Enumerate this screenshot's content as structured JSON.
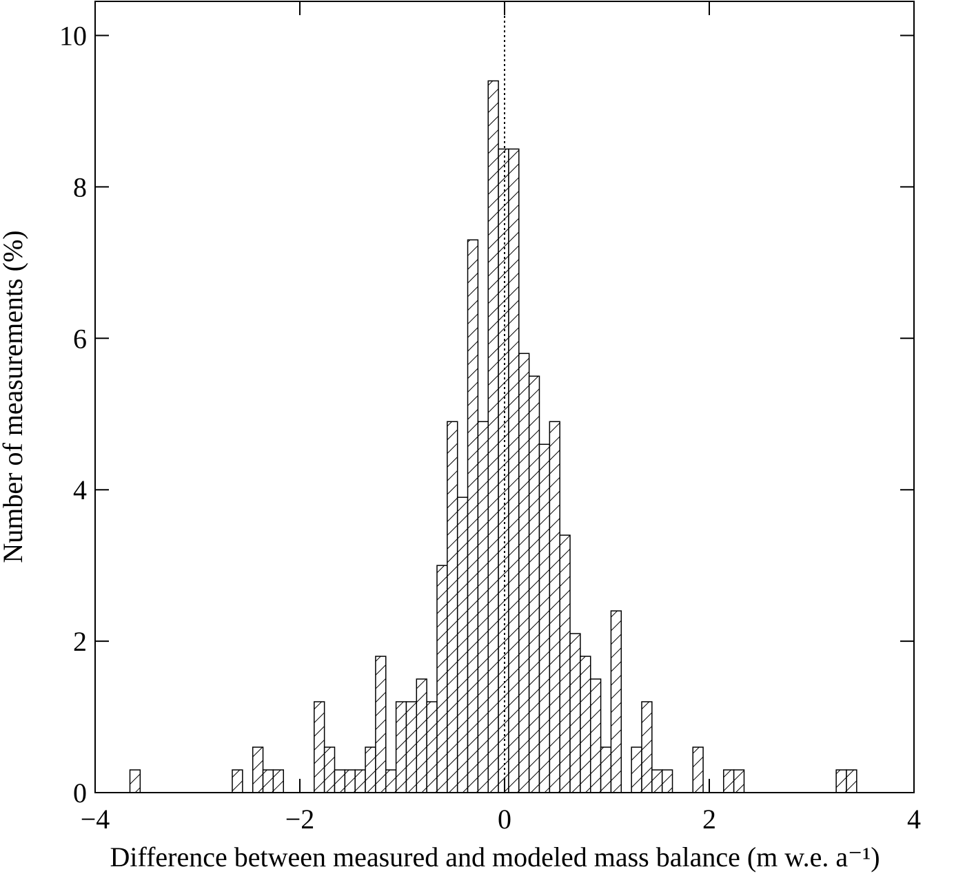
{
  "chart_data": {
    "type": "histogram",
    "xlabel": "Difference between measured and modeled mass balance (m w.e. a⁻¹)",
    "ylabel": "Number of measurements (%)",
    "bins": [
      -3.66,
      -3.56,
      -3.46,
      -3.36,
      -3.26,
      -3.16,
      -3.06,
      -2.96,
      -2.86,
      -2.76,
      -2.66,
      -2.56,
      -2.46,
      -2.36,
      -2.26,
      -2.16,
      -2.06,
      -1.96,
      -1.86,
      -1.76,
      -1.66,
      -1.56,
      -1.46,
      -1.36,
      -1.26,
      -1.16,
      -1.06,
      -0.96,
      -0.86,
      -0.76,
      -0.66,
      -0.56,
      -0.46,
      -0.36,
      -0.26,
      -0.16,
      -0.06,
      0.04,
      0.14,
      0.24,
      0.34,
      0.44,
      0.54,
      0.64,
      0.74,
      0.84,
      0.94,
      1.04,
      1.14,
      1.24,
      1.34,
      1.44,
      1.54,
      1.64,
      1.74,
      1.84,
      1.94,
      2.04,
      2.14,
      2.24,
      2.34,
      2.44,
      2.54,
      2.64,
      2.74,
      2.84,
      2.94,
      3.04,
      3.14,
      3.24,
      3.34,
      3.44
    ],
    "values": [
      0.3,
      0,
      0,
      0,
      0,
      0,
      0,
      0,
      0,
      0,
      0.3,
      0,
      0.6,
      0.3,
      0.3,
      0,
      0,
      0,
      1.2,
      0.6,
      0.3,
      0.3,
      0.3,
      0.6,
      1.8,
      0.3,
      1.2,
      1.2,
      1.5,
      1.2,
      3.0,
      4.9,
      3.9,
      7.3,
      4.9,
      9.4,
      8.5,
      8.5,
      5.8,
      5.5,
      4.6,
      4.9,
      3.4,
      2.1,
      1.8,
      1.5,
      0.6,
      2.4,
      0,
      0.6,
      1.2,
      0.3,
      0.3,
      0,
      0,
      0.6,
      0,
      0,
      0.3,
      0.3,
      0,
      0,
      0,
      0,
      0,
      0,
      0,
      0,
      0,
      0.3,
      0.3
    ],
    "color": "#000000",
    "hatch": true,
    "reference_line_x": 0,
    "xlim": [
      -4,
      4
    ],
    "xticks": [
      {
        "value": -4,
        "label": "−4"
      },
      {
        "value": -2,
        "label": "−2"
      },
      0,
      2,
      4
    ],
    "ylim": [
      0,
      10.45
    ],
    "yticks": [
      0,
      2,
      4,
      6,
      8,
      10
    ]
  }
}
